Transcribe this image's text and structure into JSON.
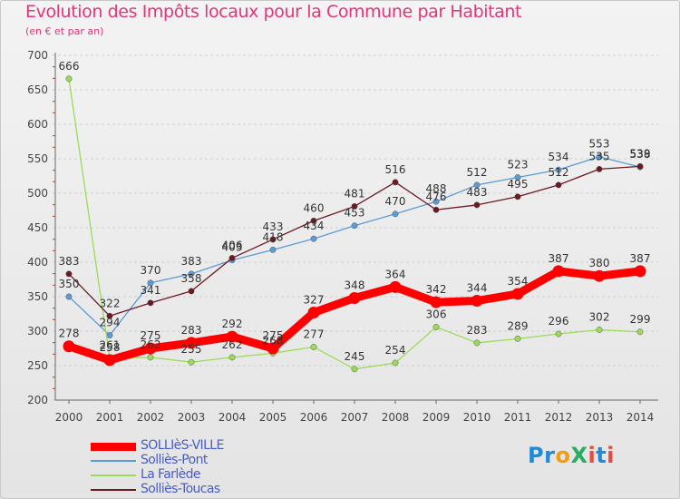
{
  "header": {
    "title": "Evolution des Impôts locaux pour la Commune par Habitant",
    "subtitle": "(en € et par an)"
  },
  "logo": {
    "text": "ProXiti",
    "colors": [
      "#1e8bd6",
      "#f39c12",
      "#27ae60",
      "#e74c3c"
    ]
  },
  "chart_data": {
    "type": "line",
    "title": "Evolution des Impôts locaux pour la Commune par Habitant",
    "subtitle": "(en € et par an)",
    "x": [
      "2000",
      "2001",
      "2002",
      "2003",
      "2004",
      "2005",
      "2006",
      "2007",
      "2008",
      "2009",
      "2010",
      "2011",
      "2012",
      "2013",
      "2014"
    ],
    "ylim": [
      200,
      700
    ],
    "yticks": [
      "200",
      "250",
      "300",
      "350",
      "400",
      "450",
      "500",
      "550",
      "600",
      "650",
      "700"
    ],
    "grid": "horizontal dashed",
    "legend_position": "bottom-left",
    "series": [
      {
        "name": "SOLLIèS-VILLE",
        "color": "#ff0000",
        "values": [
          278,
          258,
          275,
          283,
          292,
          275,
          327,
          348,
          364,
          342,
          344,
          354,
          387,
          380,
          387
        ],
        "labels": [
          "278",
          "258",
          "275",
          "283",
          "292",
          "275",
          "327",
          "348",
          "364",
          "342",
          "344",
          "354",
          "387",
          "380",
          "387"
        ]
      },
      {
        "name": "Solliès-Pont",
        "color": "#5b9bd5",
        "values": [
          350,
          294,
          370,
          383,
          403,
          418,
          434,
          453,
          470,
          488,
          512,
          523,
          534,
          553,
          538
        ],
        "labels": [
          "350",
          "294",
          "370",
          "383",
          "403",
          "418",
          "434",
          "453",
          "470",
          "488",
          "512",
          "523",
          "534",
          "553",
          "538"
        ]
      },
      {
        "name": "La Farlède",
        "color": "#9bdb57",
        "values": [
          666,
          261,
          262,
          255,
          262,
          268,
          277,
          245,
          254,
          306,
          283,
          289,
          296,
          302,
          299
        ],
        "labels": [
          "666",
          "261",
          "262",
          "255",
          "262",
          "268",
          "277",
          "245",
          "254",
          "306",
          "283",
          "289",
          "296",
          "302",
          "299"
        ]
      },
      {
        "name": "Solliès-Toucas",
        "color": "#6b1a22",
        "values": [
          383,
          322,
          341,
          358,
          406,
          433,
          460,
          481,
          516,
          476,
          483,
          495,
          512,
          535,
          539
        ],
        "labels": [
          "383",
          "322",
          "341",
          "358",
          "406",
          "433",
          "460",
          "481",
          "516",
          "476",
          "483",
          "495",
          "512",
          "535",
          "539"
        ]
      }
    ]
  }
}
